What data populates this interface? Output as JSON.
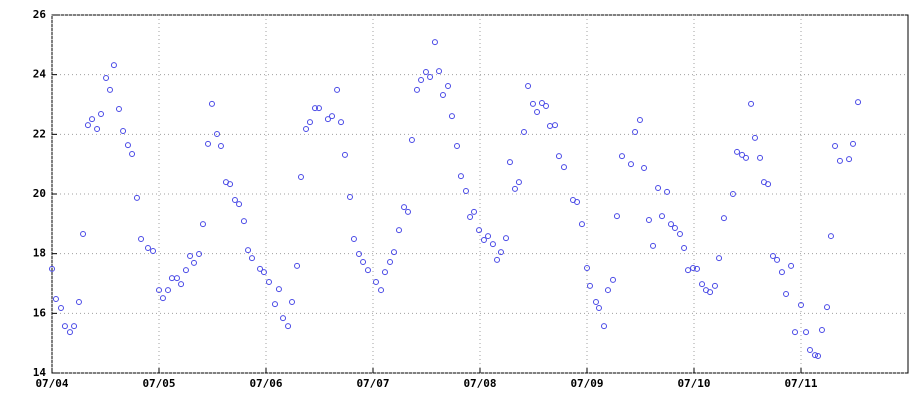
{
  "chart_data": {
    "type": "scatter",
    "xlim": [
      0,
      8
    ],
    "ylim": [
      14,
      26
    ],
    "xticks": [
      {
        "value": 0,
        "label": "07/04"
      },
      {
        "value": 1,
        "label": "07/05"
      },
      {
        "value": 2,
        "label": "07/06"
      },
      {
        "value": 3,
        "label": "07/07"
      },
      {
        "value": 4,
        "label": "07/08"
      },
      {
        "value": 5,
        "label": "07/09"
      },
      {
        "value": 6,
        "label": "07/10"
      },
      {
        "value": 7,
        "label": "07/11"
      }
    ],
    "yticks": [
      14,
      16,
      18,
      20,
      22,
      24,
      26
    ],
    "grid": true,
    "series": [
      {
        "color": "#4a4ae6",
        "x": [
          0.0,
          0.037,
          0.084,
          0.121,
          0.168,
          0.206,
          0.252,
          0.29,
          0.336,
          0.374,
          0.421,
          0.458,
          0.505,
          0.542,
          0.579,
          0.626,
          0.664,
          0.71,
          0.748,
          0.794,
          0.832,
          0.897,
          0.944,
          1.0,
          1.037,
          1.084,
          1.121,
          1.168,
          1.206,
          1.252,
          1.29,
          1.327,
          1.374,
          1.411,
          1.458,
          1.495,
          1.542,
          1.579,
          1.626,
          1.664,
          1.71,
          1.748,
          1.794,
          1.832,
          1.869,
          1.944,
          1.981,
          2.028,
          2.084,
          2.121,
          2.159,
          2.206,
          2.243,
          2.29,
          2.327,
          2.374,
          2.411,
          2.458,
          2.495,
          2.579,
          2.617,
          2.664,
          2.701,
          2.738,
          2.785,
          2.822,
          2.869,
          2.907,
          2.953,
          3.028,
          3.075,
          3.112,
          3.159,
          3.196,
          3.243,
          3.29,
          3.327,
          3.364,
          3.411,
          3.449,
          3.495,
          3.533,
          3.579,
          3.617,
          3.654,
          3.701,
          3.738,
          3.785,
          3.822,
          3.869,
          3.907,
          3.944,
          3.991,
          4.037,
          4.075,
          4.121,
          4.159,
          4.196,
          4.243,
          4.28,
          4.327,
          4.364,
          4.411,
          4.449,
          4.495,
          4.533,
          4.579,
          4.617,
          4.654,
          4.701,
          4.738,
          4.785,
          4.869,
          4.907,
          4.953,
          5.0,
          5.028,
          5.084,
          5.112,
          5.159,
          5.196,
          5.243,
          5.28,
          5.327,
          5.411,
          5.449,
          5.495,
          5.533,
          5.579,
          5.617,
          5.664,
          5.701,
          5.748,
          5.785,
          5.822,
          5.869,
          5.907,
          5.944,
          5.991,
          6.028,
          6.075,
          6.112,
          6.15,
          6.196,
          6.234,
          6.28,
          6.364,
          6.402,
          6.449,
          6.486,
          6.533,
          6.57,
          6.617,
          6.654,
          6.692,
          6.738,
          6.776,
          6.822,
          6.86,
          6.907,
          6.944,
          7.0,
          7.047,
          7.084,
          7.131,
          7.159,
          7.196,
          7.243,
          7.28,
          7.318,
          7.364,
          7.449,
          7.486,
          7.533
        ],
        "values": [
          17.49,
          16.48,
          16.18,
          15.57,
          15.37,
          15.57,
          16.38,
          18.66,
          22.31,
          22.51,
          22.18,
          22.68,
          23.89,
          23.49,
          24.32,
          22.85,
          22.11,
          21.64,
          21.34,
          19.87,
          18.49,
          18.19,
          18.09,
          16.78,
          16.51,
          16.78,
          17.18,
          17.18,
          16.98,
          17.45,
          17.92,
          17.69,
          17.99,
          18.99,
          21.68,
          23.02,
          22.01,
          21.61,
          20.4,
          20.33,
          19.8,
          19.66,
          19.09,
          18.12,
          17.85,
          17.49,
          17.38,
          17.05,
          16.31,
          16.81,
          15.84,
          15.57,
          16.38,
          17.59,
          20.57,
          22.18,
          22.41,
          22.88,
          22.88,
          22.51,
          22.61,
          23.49,
          22.41,
          21.31,
          19.9,
          18.49,
          17.99,
          17.72,
          17.45,
          17.05,
          16.78,
          17.38,
          17.72,
          18.05,
          18.79,
          19.56,
          19.4,
          21.81,
          23.49,
          23.82,
          24.09,
          23.92,
          25.09,
          24.12,
          23.32,
          23.62,
          22.61,
          21.61,
          20.6,
          20.1,
          19.23,
          19.4,
          18.79,
          18.46,
          18.59,
          18.32,
          17.79,
          18.05,
          18.52,
          21.07,
          20.17,
          20.4,
          22.08,
          23.62,
          23.02,
          22.75,
          23.05,
          22.95,
          22.28,
          22.31,
          21.27,
          20.9,
          19.8,
          19.73,
          18.99,
          17.52,
          16.92,
          16.38,
          16.18,
          15.57,
          16.78,
          17.12,
          19.26,
          21.27,
          21.0,
          22.08,
          22.48,
          20.87,
          19.13,
          18.26,
          20.2,
          19.26,
          20.07,
          18.99,
          18.86,
          18.66,
          18.19,
          17.45,
          17.52,
          17.49,
          16.98,
          16.78,
          16.71,
          16.92,
          17.85,
          19.19,
          20.0,
          21.41,
          21.31,
          21.21,
          23.02,
          21.88,
          21.21,
          20.4,
          20.33,
          17.92,
          17.79,
          17.38,
          16.65,
          17.59,
          15.37,
          16.28,
          15.37,
          14.77,
          14.6,
          14.57,
          15.44,
          16.21,
          18.59,
          21.61,
          21.11,
          21.17,
          21.68,
          23.08
        ]
      }
    ]
  }
}
